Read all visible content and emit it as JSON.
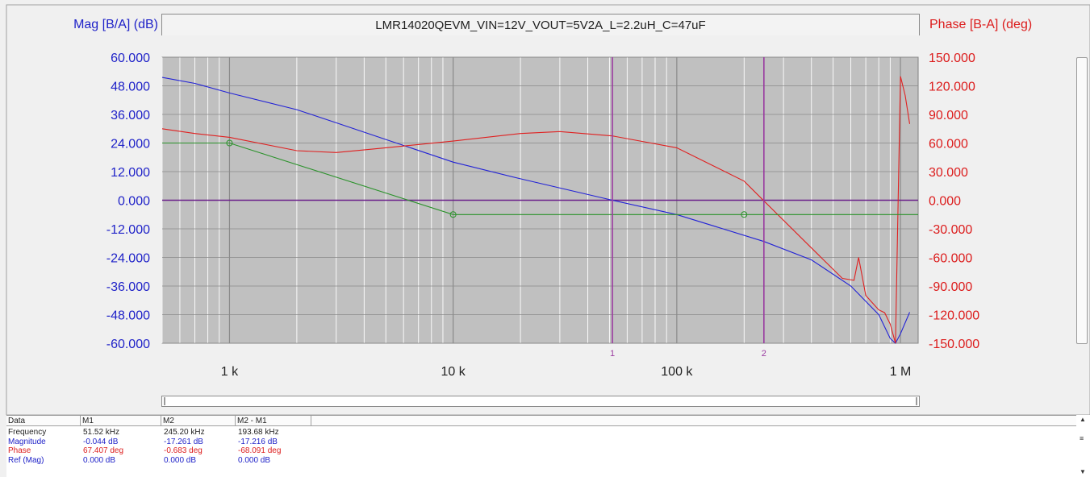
{
  "title": "LMR14020QEVM_VIN=12V_VOUT=5V2A_L=2.2uH_C=47uF",
  "left_axis_label": "Mag [B/A] (dB)",
  "right_axis_label": "Phase [B-A] (deg)",
  "colors": {
    "magnitude": "#2222d6",
    "phase": "#e02020",
    "reference": "#2a922a",
    "marker": "#9a3aa0",
    "zero_line": "#6a1f8a",
    "plot_bg": "#c0c0c0"
  },
  "chart_data": {
    "type": "line",
    "x_scale": "log",
    "xlim": [
      500,
      1200000
    ],
    "ylim_left": [
      -60,
      60
    ],
    "ylim_right": [
      -150,
      150
    ],
    "grid": true,
    "left_ticks": [
      "60.000",
      "48.000",
      "36.000",
      "24.000",
      "12.000",
      "0.000",
      "-12.000",
      "-24.000",
      "-36.000",
      "-48.000",
      "-60.000"
    ],
    "right_ticks": [
      "150.000",
      "120.000",
      "90.000",
      "60.000",
      "30.000",
      "0.000",
      "-30.000",
      "-60.000",
      "-90.000",
      "-120.000",
      "-150.000"
    ],
    "x_ticks": [
      {
        "value": 1000,
        "label": "1 k"
      },
      {
        "value": 10000,
        "label": "10 k"
      },
      {
        "value": 100000,
        "label": "100 k"
      },
      {
        "value": 1000000,
        "label": "1 M"
      }
    ],
    "markers": [
      {
        "label": "1",
        "x": 51520
      },
      {
        "label": "2",
        "x": 245200
      }
    ],
    "series": [
      {
        "name": "Magnitude",
        "axis": "left",
        "color": "#2222d6",
        "points": [
          [
            500,
            51.5
          ],
          [
            700,
            49
          ],
          [
            1000,
            45
          ],
          [
            2000,
            38
          ],
          [
            3000,
            32.5
          ],
          [
            5000,
            25.5
          ],
          [
            10000,
            16
          ],
          [
            20000,
            9
          ],
          [
            51520,
            0
          ],
          [
            100000,
            -6
          ],
          [
            245200,
            -17.3
          ],
          [
            400000,
            -25
          ],
          [
            600000,
            -36
          ],
          [
            800000,
            -48
          ],
          [
            900000,
            -58
          ],
          [
            950000,
            -60
          ],
          [
            1000000,
            -56
          ],
          [
            1100000,
            -47
          ]
        ]
      },
      {
        "name": "Phase",
        "axis": "right",
        "color": "#e02020",
        "points": [
          [
            500,
            75
          ],
          [
            700,
            70
          ],
          [
            1000,
            66
          ],
          [
            2000,
            52
          ],
          [
            3000,
            50
          ],
          [
            5000,
            55
          ],
          [
            10000,
            62
          ],
          [
            20000,
            70
          ],
          [
            30000,
            72
          ],
          [
            51520,
            67.4
          ],
          [
            100000,
            55
          ],
          [
            200000,
            20
          ],
          [
            245200,
            -0.7
          ],
          [
            400000,
            -50
          ],
          [
            550000,
            -82
          ],
          [
            620000,
            -84
          ],
          [
            650000,
            -60
          ],
          [
            700000,
            -100
          ],
          [
            800000,
            -115
          ],
          [
            850000,
            -118
          ],
          [
            900000,
            -130
          ],
          [
            950000,
            -150
          ],
          [
            1000000,
            130
          ],
          [
            1050000,
            110
          ],
          [
            1100000,
            80
          ]
        ]
      },
      {
        "name": "Reference",
        "axis": "left",
        "color": "#2a922a",
        "points": [
          [
            500,
            24
          ],
          [
            1000,
            24
          ],
          [
            10000,
            -6
          ],
          [
            200000,
            -6
          ],
          [
            1200000,
            -6
          ]
        ],
        "handles": [
          [
            1000,
            24
          ],
          [
            10000,
            -6
          ],
          [
            200000,
            -6
          ]
        ]
      }
    ]
  },
  "table": {
    "headers": [
      "Data",
      "M1",
      "M2",
      "M2 - M1"
    ],
    "rows": [
      {
        "label": "Frequency",
        "color": "#222222",
        "values": [
          "51.52 kHz",
          "245.20 kHz",
          "193.68 kHz"
        ]
      },
      {
        "label": "Magnitude",
        "color": "#1f22c8",
        "values": [
          "-0.044 dB",
          "-17.261 dB",
          "-17.216 dB"
        ]
      },
      {
        "label": "Phase",
        "color": "#dc1c1c",
        "values": [
          "67.407 deg",
          "-0.683 deg",
          "-68.091 deg"
        ]
      },
      {
        "label": "Ref (Mag)",
        "color": "#1f22c8",
        "values": [
          "0.000 dB",
          "0.000 dB",
          "0.000 dB"
        ]
      }
    ]
  }
}
